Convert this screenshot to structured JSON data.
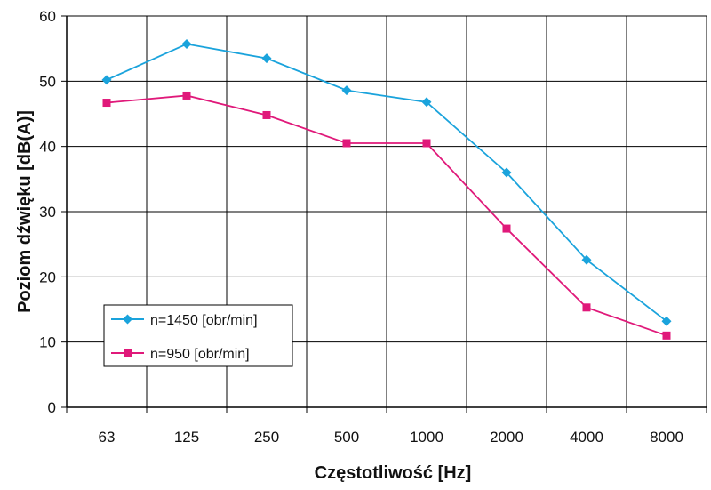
{
  "chart_data": {
    "type": "line",
    "xlabel": "Częstotliwość [Hz]",
    "ylabel": "Poziom dźwięku [dB(A)]",
    "categories": [
      "63",
      "125",
      "250",
      "500",
      "1000",
      "2000",
      "4000",
      "8000"
    ],
    "ylim": [
      0,
      60
    ],
    "yticks": [
      0,
      10,
      20,
      30,
      40,
      50,
      60
    ],
    "grid": true,
    "legend_position": "bottom-left",
    "series": [
      {
        "name": "n=1450 [obr/min]",
        "color": "#1aa3dc",
        "marker": "diamond",
        "values": [
          50.2,
          55.7,
          53.5,
          48.6,
          46.8,
          36.0,
          22.6,
          13.2
        ]
      },
      {
        "name": "n=950 [obr/min]",
        "color": "#e0197a",
        "marker": "square",
        "values": [
          46.7,
          47.8,
          44.8,
          40.5,
          40.5,
          27.4,
          15.3,
          11.0
        ]
      }
    ]
  }
}
